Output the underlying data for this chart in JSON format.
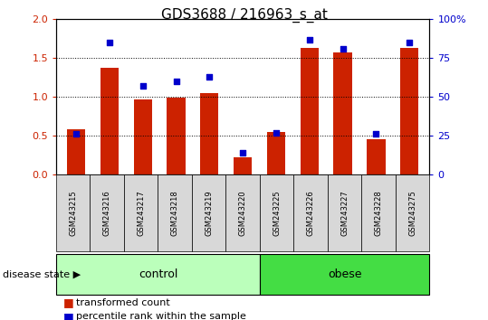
{
  "title": "GDS3688 / 216963_s_at",
  "samples": [
    "GSM243215",
    "GSM243216",
    "GSM243217",
    "GSM243218",
    "GSM243219",
    "GSM243220",
    "GSM243225",
    "GSM243226",
    "GSM243227",
    "GSM243228",
    "GSM243275"
  ],
  "transformed_count": [
    0.58,
    1.37,
    0.97,
    0.99,
    1.05,
    0.22,
    0.55,
    1.63,
    1.57,
    0.45,
    1.63
  ],
  "percentile_rank": [
    26,
    85,
    57,
    60,
    63,
    14,
    27,
    87,
    81,
    26,
    85
  ],
  "bar_color": "#cc2200",
  "dot_color": "#0000cc",
  "ylim_left": [
    0,
    2
  ],
  "ylim_right": [
    0,
    100
  ],
  "yticks_left": [
    0,
    0.5,
    1.0,
    1.5,
    2.0
  ],
  "yticks_right": [
    0,
    25,
    50,
    75,
    100
  ],
  "groups": [
    {
      "label": "control",
      "start": 0,
      "end": 5,
      "color": "#bbffbb"
    },
    {
      "label": "obese",
      "start": 6,
      "end": 10,
      "color": "#44dd44"
    }
  ],
  "legend_items": [
    {
      "label": "transformed count",
      "color": "#cc2200"
    },
    {
      "label": "percentile rank within the sample",
      "color": "#0000cc"
    }
  ],
  "grid_color": "black",
  "grid_style": "dotted",
  "sample_bg_color": "#d8d8d8",
  "title_fontsize": 11,
  "tick_label_fontsize": 8,
  "sample_fontsize": 6,
  "group_fontsize": 9,
  "legend_fontsize": 8
}
